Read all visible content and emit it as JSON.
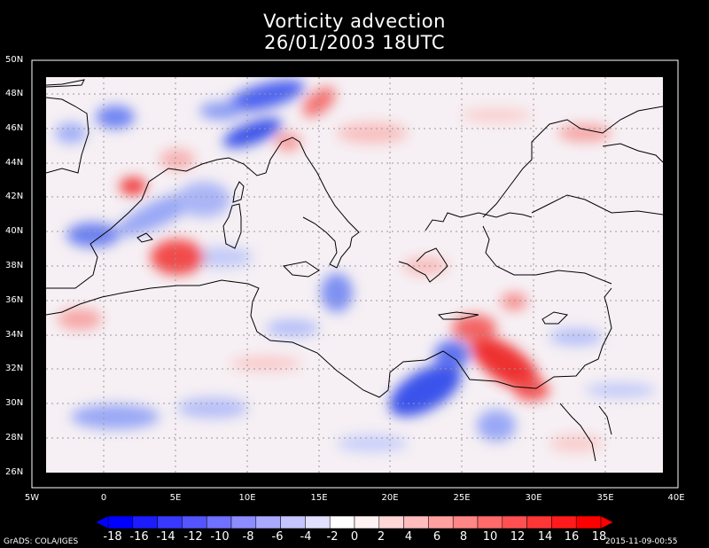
{
  "title_line1": "Vorticity advection",
  "title_line2": "26/01/2003 18UTC",
  "lat_labels": [
    "50N",
    "48N",
    "46N",
    "44N",
    "42N",
    "40N",
    "38N",
    "36N",
    "34N",
    "32N",
    "30N",
    "28N",
    "26N"
  ],
  "lon_labels": [
    "5W",
    "0",
    "5E",
    "10E",
    "15E",
    "20E",
    "25E",
    "30E",
    "35E",
    "40E"
  ],
  "colorbar_labels": [
    "-18",
    "-16",
    "-14",
    "-12",
    "-10",
    "-8",
    "-6",
    "-4",
    "-2",
    "0",
    "2",
    "4",
    "6",
    "8",
    "10",
    "12",
    "14",
    "16",
    "18"
  ],
  "colors": {
    "negative": "#0000ff",
    "zero": "#ffffff",
    "positive": "#ff0000",
    "background": "#000000",
    "frame": "#ffffff"
  },
  "footer_left": "GrADS: COLA/IGES",
  "footer_right": "2015-11-09-00:55"
}
